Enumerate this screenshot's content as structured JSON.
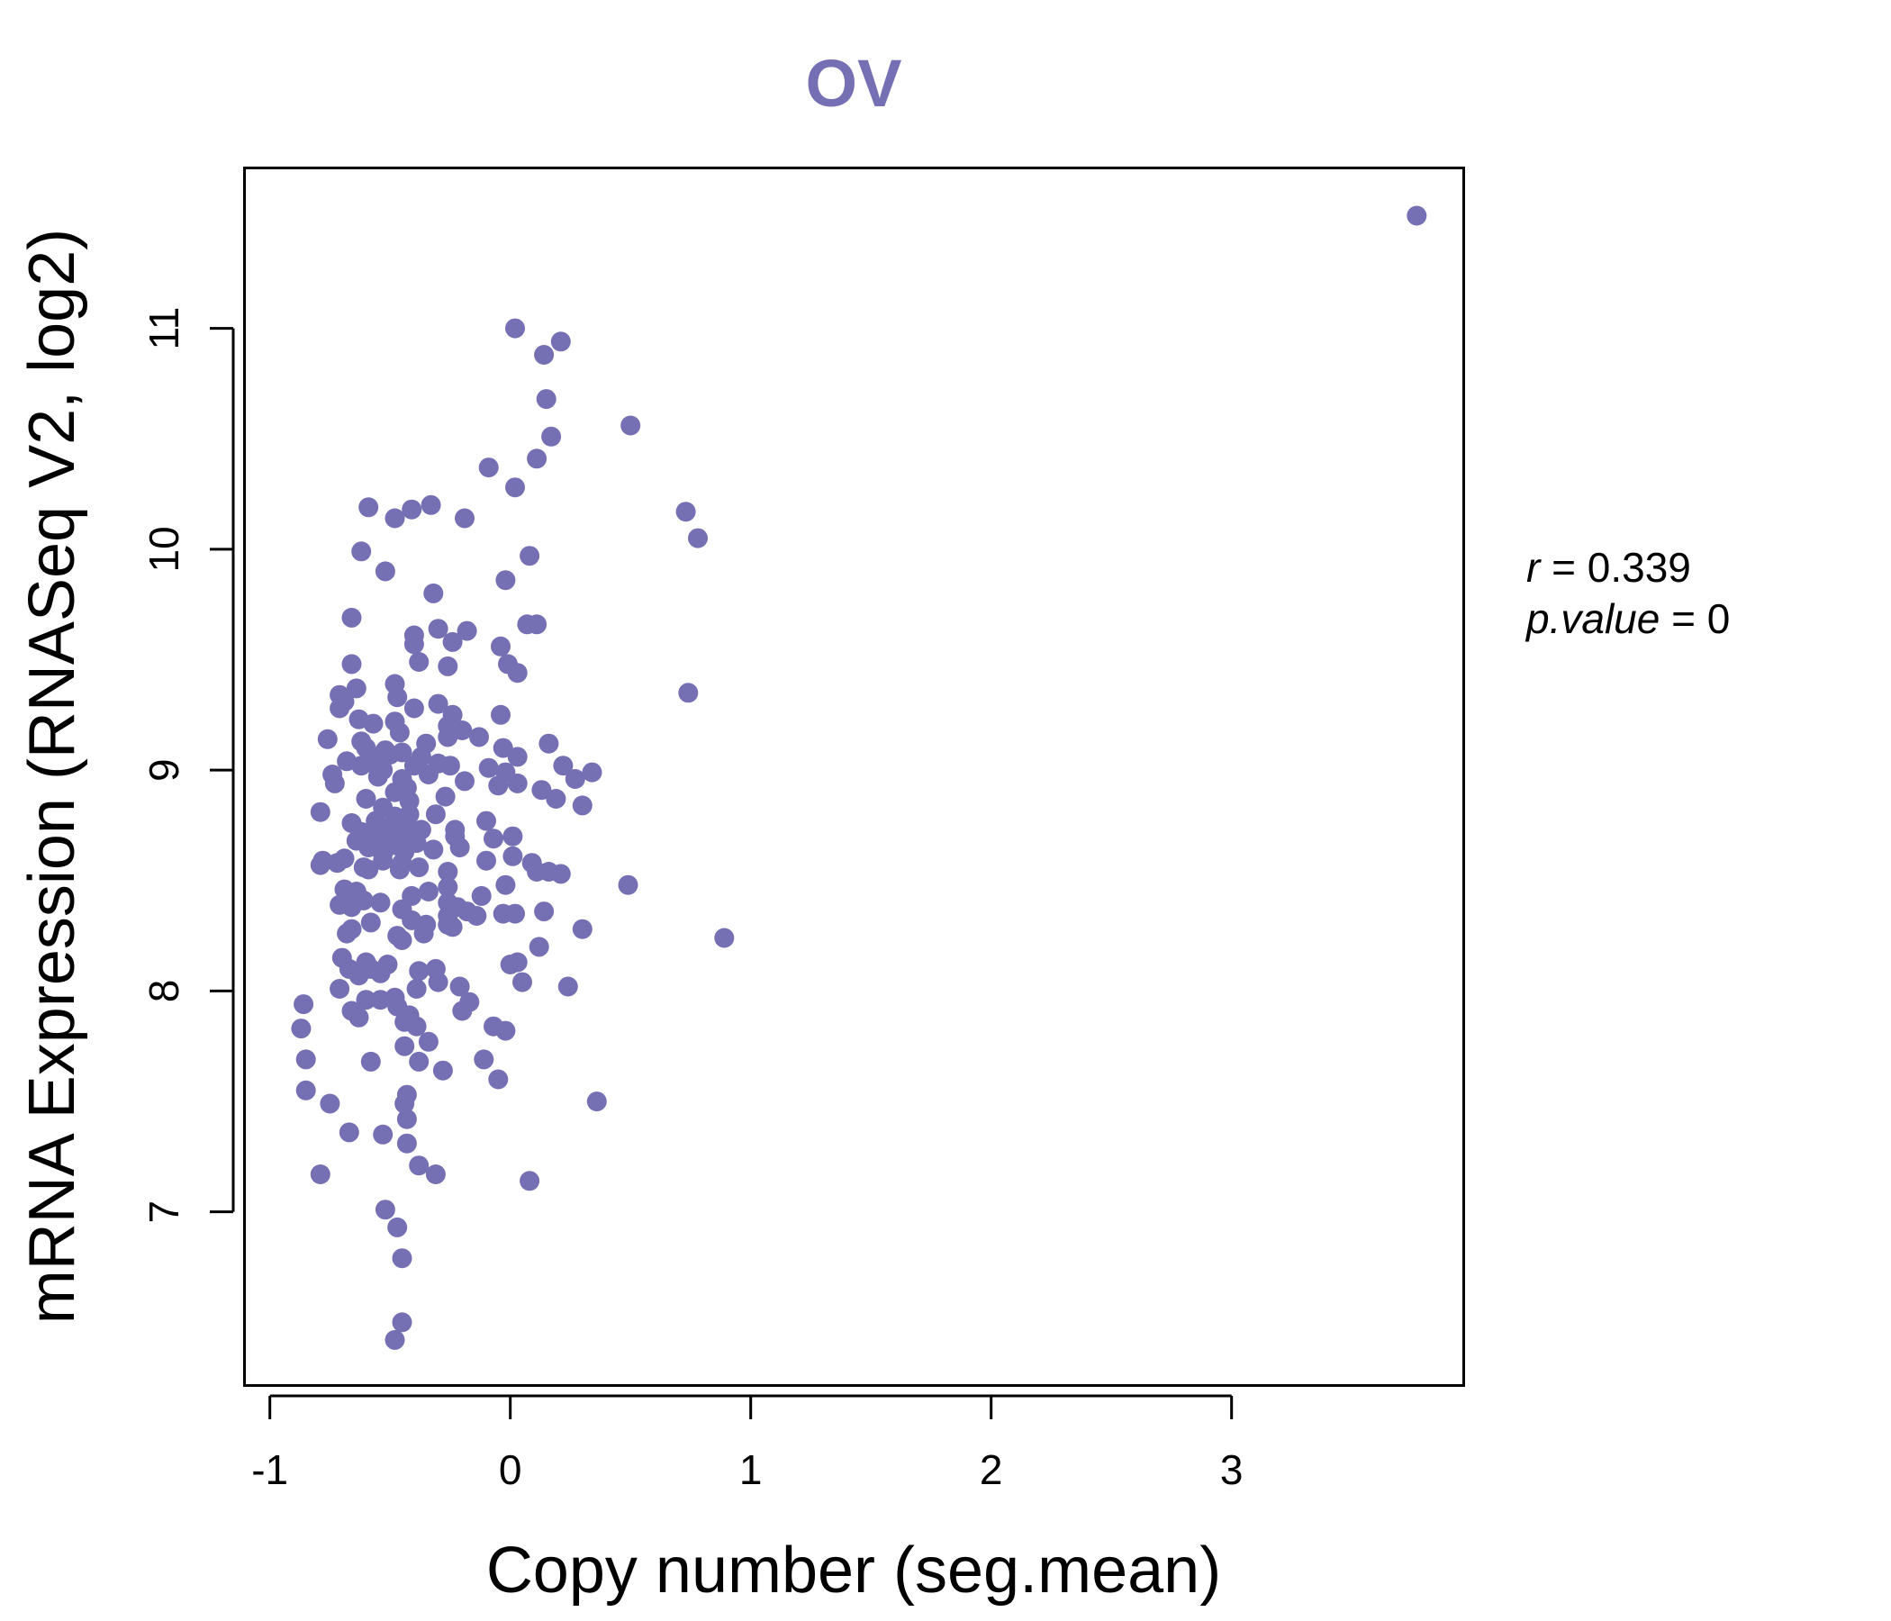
{
  "chart_data": {
    "type": "scatter",
    "title": "OV",
    "xlabel": "Copy number (seg.mean)",
    "ylabel": "mRNA Expression (RNASeq V2, log2)",
    "xlim": [
      -1.1,
      3.96
    ],
    "ylim": [
      6.22,
      11.72
    ],
    "xticks": [
      "-1",
      "0",
      "1",
      "2",
      "3"
    ],
    "xtick_values": [
      -1,
      0,
      1,
      2,
      3
    ],
    "yticks": [
      "7",
      "8",
      "9",
      "10",
      "11"
    ],
    "ytick_values": [
      7,
      8,
      9,
      10,
      11
    ],
    "grid": false,
    "point_color": "#7570b3",
    "stats": {
      "r_label": "r",
      "r_value": "0.339",
      "p_label": "p.value",
      "p_value": "0"
    },
    "points": [
      [
        3.77,
        11.51
      ],
      [
        0.02,
        11.0
      ],
      [
        0.21,
        10.94
      ],
      [
        0.14,
        10.88
      ],
      [
        0.15,
        10.68
      ],
      [
        0.5,
        10.56
      ],
      [
        0.17,
        10.51
      ],
      [
        0.11,
        10.41
      ],
      [
        -0.09,
        10.37
      ],
      [
        0.02,
        10.28
      ],
      [
        -0.59,
        10.19
      ],
      [
        -0.41,
        10.18
      ],
      [
        -0.33,
        10.2
      ],
      [
        -0.48,
        10.14
      ],
      [
        0.73,
        10.17
      ],
      [
        -0.19,
        10.14
      ],
      [
        0.78,
        10.05
      ],
      [
        -0.62,
        9.99
      ],
      [
        0.08,
        9.97
      ],
      [
        -0.52,
        9.9
      ],
      [
        -0.02,
        9.86
      ],
      [
        -0.32,
        9.8
      ],
      [
        -0.66,
        9.69
      ],
      [
        0.07,
        9.66
      ],
      [
        0.11,
        9.66
      ],
      [
        -0.3,
        9.64
      ],
      [
        -0.18,
        9.63
      ],
      [
        -0.4,
        9.61
      ],
      [
        -0.24,
        9.58
      ],
      [
        -0.4,
        9.57
      ],
      [
        -0.04,
        9.56
      ],
      [
        -0.38,
        9.49
      ],
      [
        -0.66,
        9.48
      ],
      [
        -0.26,
        9.47
      ],
      [
        -0.01,
        9.48
      ],
      [
        0.03,
        9.44
      ],
      [
        -0.48,
        9.39
      ],
      [
        -0.64,
        9.37
      ],
      [
        -0.71,
        9.34
      ],
      [
        0.74,
        9.35
      ],
      [
        -0.47,
        9.33
      ],
      [
        -0.69,
        9.31
      ],
      [
        -0.3,
        9.3
      ],
      [
        -0.71,
        9.28
      ],
      [
        -0.4,
        9.28
      ],
      [
        -0.24,
        9.25
      ],
      [
        -0.04,
        9.25
      ],
      [
        -0.63,
        9.23
      ],
      [
        -0.48,
        9.22
      ],
      [
        -0.57,
        9.21
      ],
      [
        -0.26,
        9.2
      ],
      [
        -0.2,
        9.18
      ],
      [
        -0.46,
        9.17
      ],
      [
        -0.13,
        9.15
      ],
      [
        -0.26,
        9.15
      ],
      [
        -0.76,
        9.14
      ],
      [
        -0.62,
        9.13
      ],
      [
        0.16,
        9.12
      ],
      [
        -0.35,
        9.12
      ],
      [
        -0.6,
        9.1
      ],
      [
        -0.03,
        9.1
      ],
      [
        -0.52,
        9.09
      ],
      [
        -0.45,
        9.08
      ],
      [
        -0.5,
        9.07
      ],
      [
        -0.37,
        9.06
      ],
      [
        0.03,
        9.06
      ],
      [
        -0.55,
        9.05
      ],
      [
        -0.68,
        9.04
      ],
      [
        -0.57,
        9.03
      ],
      [
        -0.3,
        9.03
      ],
      [
        -0.62,
        9.02
      ],
      [
        -0.4,
        9.02
      ],
      [
        0.22,
        9.02
      ],
      [
        -0.09,
        9.01
      ],
      [
        -0.25,
        9.02
      ],
      [
        -0.53,
        9.0
      ],
      [
        0.34,
        8.99
      ],
      [
        -0.02,
        8.99
      ],
      [
        -0.74,
        8.98
      ],
      [
        -0.34,
        8.98
      ],
      [
        -0.55,
        8.97
      ],
      [
        -0.45,
        8.96
      ],
      [
        0.27,
        8.96
      ],
      [
        -0.19,
        8.95
      ],
      [
        -0.73,
        8.94
      ],
      [
        0.03,
        8.94
      ],
      [
        -0.05,
        8.93
      ],
      [
        -0.43,
        8.92
      ],
      [
        0.13,
        8.91
      ],
      [
        -0.48,
        8.9
      ],
      [
        -0.27,
        8.88
      ],
      [
        0.19,
        8.87
      ],
      [
        -0.6,
        8.87
      ],
      [
        -0.42,
        8.86
      ],
      [
        0.3,
        8.84
      ],
      [
        -0.53,
        8.83
      ],
      [
        -0.79,
        8.81
      ],
      [
        -0.42,
        8.8
      ],
      [
        -0.31,
        8.8
      ],
      [
        -0.48,
        8.79
      ],
      [
        -0.56,
        8.77
      ],
      [
        -0.1,
        8.77
      ],
      [
        -0.44,
        8.76
      ],
      [
        -0.66,
        8.76
      ],
      [
        -0.5,
        8.74
      ],
      [
        -0.23,
        8.73
      ],
      [
        -0.37,
        8.73
      ],
      [
        -0.62,
        8.72
      ],
      [
        -0.42,
        8.71
      ],
      [
        -0.47,
        8.7
      ],
      [
        -0.57,
        8.7
      ],
      [
        -0.23,
        8.7
      ],
      [
        0.01,
        8.7
      ],
      [
        -0.44,
        8.69
      ],
      [
        -0.07,
        8.69
      ],
      [
        -0.64,
        8.68
      ],
      [
        -0.39,
        8.67
      ],
      [
        -0.52,
        8.67
      ],
      [
        -0.48,
        8.66
      ],
      [
        -0.59,
        8.65
      ],
      [
        -0.21,
        8.65
      ],
      [
        -0.32,
        8.64
      ],
      [
        -0.44,
        8.63
      ],
      [
        -0.53,
        8.62
      ],
      [
        0.01,
        8.61
      ],
      [
        -0.69,
        8.6
      ],
      [
        -0.78,
        8.59
      ],
      [
        -0.53,
        8.59
      ],
      [
        -0.1,
        8.59
      ],
      [
        -0.72,
        8.58
      ],
      [
        -0.45,
        8.58
      ],
      [
        0.09,
        8.58
      ],
      [
        -0.79,
        8.57
      ],
      [
        -0.61,
        8.56
      ],
      [
        -0.38,
        8.56
      ],
      [
        -0.46,
        8.55
      ],
      [
        -0.59,
        8.55
      ],
      [
        0.11,
        8.54
      ],
      [
        -0.26,
        8.54
      ],
      [
        0.16,
        8.54
      ],
      [
        0.21,
        8.53
      ],
      [
        0.49,
        8.48
      ],
      [
        -0.02,
        8.48
      ],
      [
        -0.26,
        8.47
      ],
      [
        -0.69,
        8.46
      ],
      [
        -0.64,
        8.45
      ],
      [
        -0.34,
        8.45
      ],
      [
        -0.67,
        8.43
      ],
      [
        -0.41,
        8.43
      ],
      [
        -0.12,
        8.43
      ],
      [
        -0.61,
        8.41
      ],
      [
        -0.54,
        8.4
      ],
      [
        -0.26,
        8.4
      ],
      [
        -0.71,
        8.39
      ],
      [
        -0.66,
        8.38
      ],
      [
        -0.22,
        8.38
      ],
      [
        -0.45,
        8.37
      ],
      [
        0.14,
        8.36
      ],
      [
        -0.18,
        8.36
      ],
      [
        0.02,
        8.35
      ],
      [
        -0.03,
        8.35
      ],
      [
        -0.26,
        8.34
      ],
      [
        -0.14,
        8.34
      ],
      [
        -0.41,
        8.32
      ],
      [
        -0.58,
        8.31
      ],
      [
        -0.26,
        8.3
      ],
      [
        -0.35,
        8.3
      ],
      [
        -0.24,
        8.29
      ],
      [
        -0.66,
        8.28
      ],
      [
        0.3,
        8.28
      ],
      [
        -0.68,
        8.26
      ],
      [
        -0.36,
        8.26
      ],
      [
        -0.47,
        8.25
      ],
      [
        0.89,
        8.24
      ],
      [
        -0.45,
        8.23
      ],
      [
        0.12,
        8.2
      ],
      [
        -0.7,
        8.15
      ],
      [
        -0.6,
        8.13
      ],
      [
        0.03,
        8.13
      ],
      [
        -0.51,
        8.12
      ],
      [
        0.0,
        8.12
      ],
      [
        -0.67,
        8.1
      ],
      [
        -0.58,
        8.1
      ],
      [
        -0.31,
        8.1
      ],
      [
        -0.38,
        8.09
      ],
      [
        -0.54,
        8.08
      ],
      [
        -0.63,
        8.07
      ],
      [
        0.05,
        8.04
      ],
      [
        -0.3,
        8.04
      ],
      [
        0.24,
        8.02
      ],
      [
        -0.21,
        8.02
      ],
      [
        -0.71,
        8.01
      ],
      [
        -0.39,
        8.01
      ],
      [
        -0.48,
        7.97
      ],
      [
        -0.6,
        7.96
      ],
      [
        -0.54,
        7.96
      ],
      [
        -0.17,
        7.95
      ],
      [
        -0.86,
        7.94
      ],
      [
        -0.47,
        7.93
      ],
      [
        -0.66,
        7.91
      ],
      [
        -0.2,
        7.91
      ],
      [
        -0.42,
        7.89
      ],
      [
        -0.63,
        7.88
      ],
      [
        -0.44,
        7.86
      ],
      [
        -0.39,
        7.84
      ],
      [
        -0.07,
        7.84
      ],
      [
        -0.87,
        7.83
      ],
      [
        -0.02,
        7.82
      ],
      [
        -0.34,
        7.77
      ],
      [
        -0.44,
        7.75
      ],
      [
        -0.85,
        7.69
      ],
      [
        -0.58,
        7.68
      ],
      [
        -0.38,
        7.68
      ],
      [
        -0.11,
        7.69
      ],
      [
        -0.28,
        7.64
      ],
      [
        -0.05,
        7.6
      ],
      [
        -0.85,
        7.55
      ],
      [
        -0.43,
        7.53
      ],
      [
        -0.44,
        7.49
      ],
      [
        0.36,
        7.5
      ],
      [
        -0.75,
        7.49
      ],
      [
        -0.43,
        7.42
      ],
      [
        -0.67,
        7.36
      ],
      [
        -0.53,
        7.35
      ],
      [
        -0.43,
        7.31
      ],
      [
        -0.38,
        7.21
      ],
      [
        -0.31,
        7.17
      ],
      [
        -0.79,
        7.17
      ],
      [
        0.08,
        7.14
      ],
      [
        -0.52,
        7.01
      ],
      [
        -0.47,
        6.93
      ],
      [
        -0.45,
        6.79
      ],
      [
        -0.45,
        6.5
      ],
      [
        -0.48,
        6.42
      ]
    ]
  }
}
